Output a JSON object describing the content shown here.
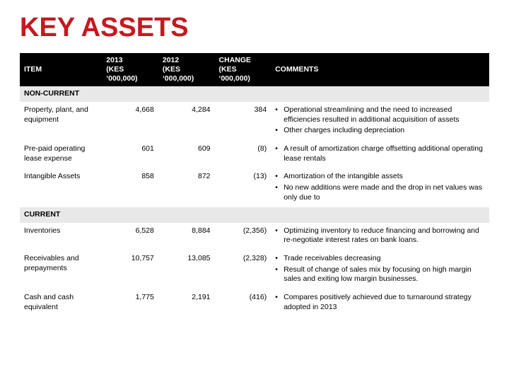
{
  "title": "KEY ASSETS",
  "colors": {
    "title": "#c5191f",
    "header_bg": "#000000",
    "header_fg": "#ffffff",
    "section_bg": "#e8e8e8",
    "text": "#000000",
    "background": "#ffffff"
  },
  "typography": {
    "title_fontsize": 38,
    "title_weight": 900,
    "body_fontsize": 10.5,
    "font_family": "Arial"
  },
  "columns": {
    "item": "ITEM",
    "y2013_line1": "2013",
    "y2013_line2": "(KES ‘000,000)",
    "y2012_line1": "2012",
    "y2012_line2": "(KES ‘000,000)",
    "change_line1": "CHANGE",
    "change_line2": "(KES ‘000,000)",
    "comments": "COMMENTS"
  },
  "column_widths_pct": [
    17.5,
    12,
    12,
    12,
    46.5
  ],
  "sections": {
    "noncurrent": {
      "label": "NON-CURRENT"
    },
    "current": {
      "label": "CURRENT"
    }
  },
  "rows": {
    "ppe": {
      "item": "Property, plant, and equipment",
      "y2013": "4,668",
      "y2012": "4,284",
      "change": "384",
      "comments": [
        "Operational streamlining and the need to increased efficiencies resulted in additional acquisition of assets",
        "Other charges including depreciation"
      ]
    },
    "prepaid": {
      "item": "Pre-paid operating lease expense",
      "y2013": "601",
      "y2012": "609",
      "change": "(8)",
      "comments": [
        "A result of amortization charge offsetting additional operating lease rentals"
      ]
    },
    "intangible": {
      "item": "Intangible Assets",
      "y2013": "858",
      "y2012": "872",
      "change": "(13)",
      "comments": [
        "Amortization of the intangible assets",
        "No new additions were made and the drop in net values was only due to"
      ]
    },
    "inventories": {
      "item": "Inventories",
      "y2013": "6,528",
      "y2012": "8,884",
      "change": "(2,356)",
      "comments": [
        "Optimizing inventory to reduce financing and borrowing and re-negotiate interest rates on bank loans."
      ]
    },
    "receivables": {
      "item": "Receivables and prepayments",
      "y2013": "10,757",
      "y2012": "13,085",
      "change": "(2,328)",
      "comments": [
        "Trade receivables decreasing",
        "Result of change of sales mix by focusing on high margin sales and exiting low margin businesses."
      ]
    },
    "cash": {
      "item": "Cash and cash equivalent",
      "y2013": "1,775",
      "y2012": "2,191",
      "change": "(416)",
      "comments": [
        "Compares positively achieved due to turnaround strategy adopted in 2013"
      ]
    }
  }
}
